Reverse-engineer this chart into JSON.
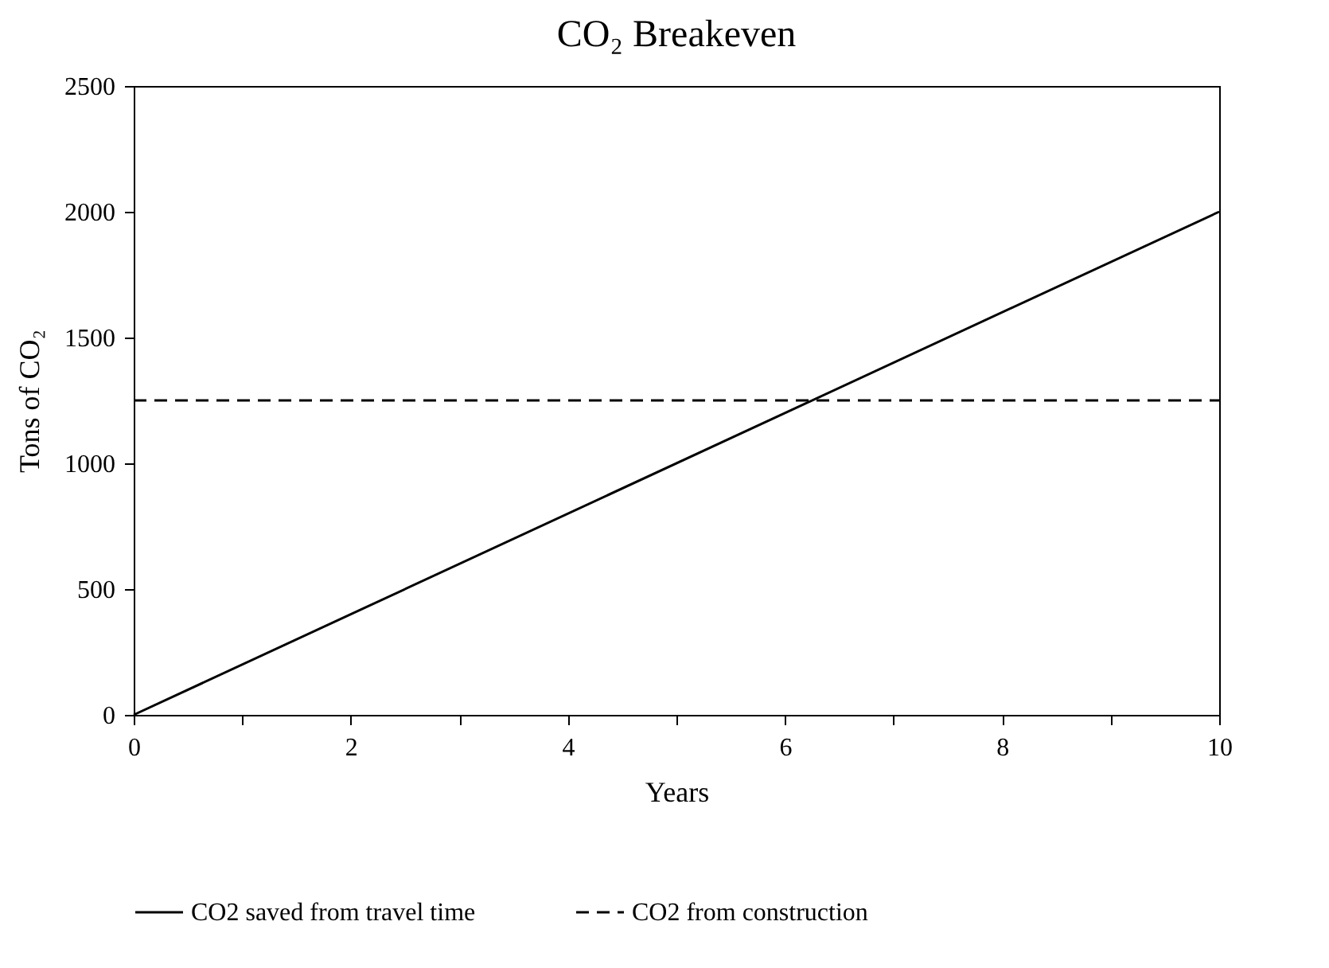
{
  "chart_data": {
    "type": "line",
    "title": "CO₂ Breakeven",
    "xlabel": "Years",
    "ylabel": "Tons of CO₂",
    "x": [
      0,
      10
    ],
    "series": [
      {
        "name": "CO2 saved from travel time",
        "color": "#000000",
        "values": [
          0,
          2000
        ],
        "line_style": "solid"
      },
      {
        "name": "CO2 from construction",
        "color": "#000000",
        "values": [
          1250,
          1250
        ],
        "line_style": "dashed"
      }
    ],
    "xlim": [
      0,
      10
    ],
    "xticks": [
      0,
      {
        "value": 1,
        "label": null
      },
      2,
      {
        "value": 3,
        "label": null
      },
      4,
      {
        "value": 5,
        "label": null
      },
      6,
      {
        "value": 7,
        "label": null
      },
      8,
      {
        "value": 9,
        "label": null
      },
      10
    ],
    "ylim": [
      0,
      2500
    ],
    "yticks": [
      0,
      500,
      1000,
      1500,
      2000,
      2500
    ],
    "grid": false,
    "legend": "bottom"
  }
}
